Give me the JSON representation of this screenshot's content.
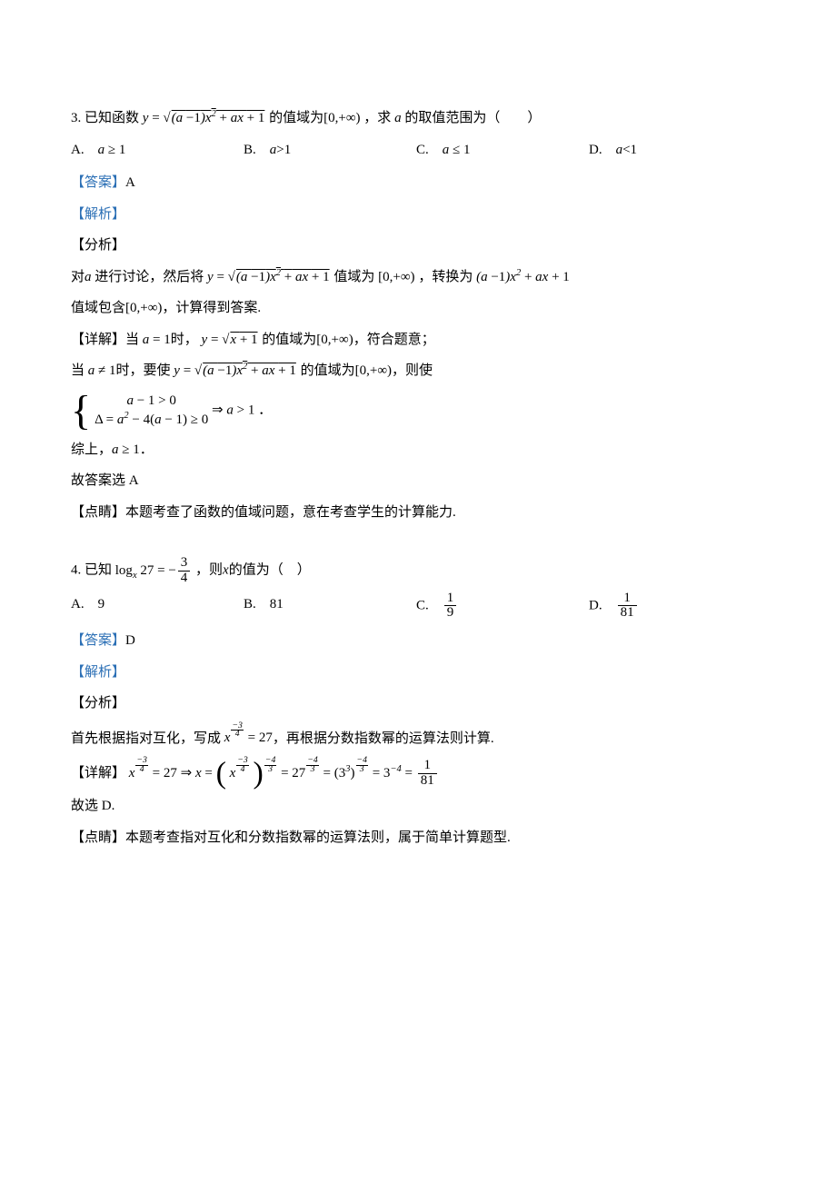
{
  "colors": {
    "link": "#2b6fb5",
    "text": "#000000",
    "background": "#ffffff"
  },
  "typography": {
    "body_font": "SimSun / 宋体",
    "math_font": "Times New Roman italic",
    "body_size_pt": 11,
    "line_height": 1.9
  },
  "q3": {
    "number": "3.",
    "stem_pre": "已知函数",
    "stem_formula": "y = √((a−1)x² + ax + 1)",
    "stem_mid1": "的值域为",
    "range": "[0,+∞)",
    "stem_mid2": "，求",
    "var": "a",
    "stem_post": "的取值范围为（　　）",
    "options": {
      "A": "a ≥ 1",
      "B": "a > 1",
      "C": "a ≤ 1",
      "D": "a < 1"
    },
    "answer_label": "【答案】",
    "answer": "A",
    "analysis_label": "【解析】",
    "section_analysis": "【分析】",
    "analysis_l1a": "对",
    "analysis_l1b": "进行讨论，然后将",
    "analysis_l1c": "值域为",
    "analysis_l1d": "，转换为",
    "poly": "(a−1)x² + ax + 1",
    "analysis_l2a": "值域包含",
    "analysis_l2b": "，计算得到答案.",
    "section_detail": "【详解】",
    "detail_l1a": "当",
    "detail_eq1": "a = 1",
    "detail_l1b": "时，",
    "detail_y1": "y = √(x+1)",
    "detail_l1c": "的值域为",
    "detail_l1d": "，符合题意；",
    "detail_l2a": "当",
    "detail_neq": "a ≠ 1",
    "detail_l2b": "时，要使",
    "detail_l2c": "的值域为",
    "detail_l2d": "，则使",
    "system_line1": "a − 1 > 0",
    "system_line2": "Δ = a² − 4(a−1) ≥ 0",
    "system_imply": "⇒ a > 1",
    "period": "．",
    "conclude_a": "综上，",
    "conclude_b": "a ≥ 1",
    "conclude_c": "．",
    "therefore": "故答案选 A",
    "section_remark": "【点睛】",
    "remark": "本题考查了函数的值域问题，意在考查学生的计算能力."
  },
  "q4": {
    "number": "4.",
    "stem_pre": "已知",
    "log_expr": "log_x 27 = −3/4",
    "stem_mid": "，则",
    "var": "x",
    "stem_post": "的值为（　）",
    "options": {
      "A": "9",
      "B": "81",
      "C": "1/9",
      "D": "1/81"
    },
    "answer_label": "【答案】",
    "answer": "D",
    "analysis_label": "【解析】",
    "section_analysis": "【分析】",
    "analysis_line_a": "首先根据指对互化，写成",
    "analysis_expr": "x^{−3/4} = 27",
    "analysis_line_b": "，再根据分数指数幂的运算法则计算.",
    "section_detail": "【详解】",
    "detail_chain": "x^{−3/4} = 27 ⇒ x = (x^{−3/4})^{−4/3} = 27^{−4/3} = (3³)^{−4/3} = 3^{−4} = 1/81",
    "therefore": "故选 D.",
    "section_remark": "【点睛】",
    "remark": "本题考查指对互化和分数指数幂的运算法则，属于简单计算题型."
  }
}
